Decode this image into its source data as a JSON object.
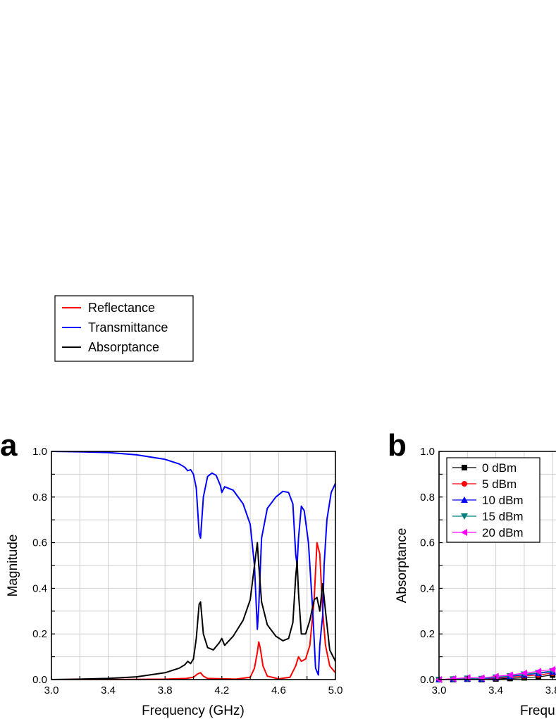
{
  "chart_data": [
    {
      "panel": "a",
      "type": "line",
      "xlabel": "Frequency (GHz)",
      "ylabel": "Magnitude",
      "xlim": [
        3.0,
        5.0
      ],
      "ylim": [
        0.0,
        1.0
      ],
      "xticks": [
        "3.0",
        "3.4",
        "3.8",
        "4.2",
        "4.6",
        "5.0"
      ],
      "yticks": [
        "0.0",
        "0.2",
        "0.4",
        "0.6",
        "0.8",
        "1.0"
      ],
      "grid": true,
      "legend_position": "center-left",
      "series": [
        {
          "name": "Reflectance",
          "color": "#ff0000",
          "points": [
            [
              3.0,
              0.0
            ],
            [
              3.4,
              0.0
            ],
            [
              3.8,
              0.002
            ],
            [
              3.95,
              0.005
            ],
            [
              4.0,
              0.01
            ],
            [
              4.03,
              0.025
            ],
            [
              4.05,
              0.03
            ],
            [
              4.07,
              0.015
            ],
            [
              4.1,
              0.005
            ],
            [
              4.3,
              0.002
            ],
            [
              4.4,
              0.01
            ],
            [
              4.43,
              0.05
            ],
            [
              4.45,
              0.12
            ],
            [
              4.46,
              0.165
            ],
            [
              4.47,
              0.14
            ],
            [
              4.49,
              0.06
            ],
            [
              4.52,
              0.015
            ],
            [
              4.6,
              0.003
            ],
            [
              4.68,
              0.01
            ],
            [
              4.72,
              0.06
            ],
            [
              4.74,
              0.1
            ],
            [
              4.76,
              0.08
            ],
            [
              4.79,
              0.09
            ],
            [
              4.82,
              0.15
            ],
            [
              4.85,
              0.35
            ],
            [
              4.87,
              0.6
            ],
            [
              4.89,
              0.55
            ],
            [
              4.91,
              0.3
            ],
            [
              4.93,
              0.15
            ],
            [
              4.96,
              0.06
            ],
            [
              5.0,
              0.03
            ]
          ]
        },
        {
          "name": "Transmittance",
          "color": "#0000ff",
          "points": [
            [
              3.0,
              1.0
            ],
            [
              3.2,
              0.998
            ],
            [
              3.4,
              0.995
            ],
            [
              3.6,
              0.985
            ],
            [
              3.8,
              0.965
            ],
            [
              3.9,
              0.945
            ],
            [
              3.94,
              0.93
            ],
            [
              3.96,
              0.915
            ],
            [
              3.98,
              0.92
            ],
            [
              4.0,
              0.9
            ],
            [
              4.02,
              0.84
            ],
            [
              4.04,
              0.64
            ],
            [
              4.05,
              0.62
            ],
            [
              4.07,
              0.8
            ],
            [
              4.1,
              0.89
            ],
            [
              4.13,
              0.905
            ],
            [
              4.16,
              0.895
            ],
            [
              4.19,
              0.85
            ],
            [
              4.2,
              0.82
            ],
            [
              4.22,
              0.845
            ],
            [
              4.28,
              0.83
            ],
            [
              4.35,
              0.77
            ],
            [
              4.4,
              0.68
            ],
            [
              4.43,
              0.5
            ],
            [
              4.45,
              0.22
            ],
            [
              4.46,
              0.32
            ],
            [
              4.48,
              0.62
            ],
            [
              4.52,
              0.75
            ],
            [
              4.58,
              0.8
            ],
            [
              4.63,
              0.825
            ],
            [
              4.67,
              0.82
            ],
            [
              4.7,
              0.77
            ],
            [
              4.72,
              0.55
            ],
            [
              4.73,
              0.5
            ],
            [
              4.74,
              0.62
            ],
            [
              4.76,
              0.76
            ],
            [
              4.78,
              0.74
            ],
            [
              4.81,
              0.6
            ],
            [
              4.84,
              0.3
            ],
            [
              4.86,
              0.05
            ],
            [
              4.88,
              0.02
            ],
            [
              4.89,
              0.15
            ],
            [
              4.9,
              0.22
            ],
            [
              4.91,
              0.28
            ],
            [
              4.92,
              0.5
            ],
            [
              4.94,
              0.7
            ],
            [
              4.97,
              0.82
            ],
            [
              5.0,
              0.86
            ]
          ]
        },
        {
          "name": "Absorptance",
          "color": "#000000",
          "points": [
            [
              3.0,
              0.0
            ],
            [
              3.2,
              0.002
            ],
            [
              3.4,
              0.005
            ],
            [
              3.6,
              0.012
            ],
            [
              3.8,
              0.03
            ],
            [
              3.9,
              0.05
            ],
            [
              3.94,
              0.065
            ],
            [
              3.96,
              0.08
            ],
            [
              3.98,
              0.07
            ],
            [
              4.0,
              0.09
            ],
            [
              4.02,
              0.18
            ],
            [
              4.04,
              0.33
            ],
            [
              4.05,
              0.34
            ],
            [
              4.07,
              0.2
            ],
            [
              4.1,
              0.14
            ],
            [
              4.14,
              0.13
            ],
            [
              4.18,
              0.16
            ],
            [
              4.2,
              0.18
            ],
            [
              4.22,
              0.15
            ],
            [
              4.28,
              0.19
            ],
            [
              4.35,
              0.26
            ],
            [
              4.4,
              0.35
            ],
            [
              4.43,
              0.5
            ],
            [
              4.45,
              0.6
            ],
            [
              4.46,
              0.5
            ],
            [
              4.48,
              0.34
            ],
            [
              4.52,
              0.24
            ],
            [
              4.58,
              0.19
            ],
            [
              4.63,
              0.17
            ],
            [
              4.67,
              0.18
            ],
            [
              4.7,
              0.25
            ],
            [
              4.72,
              0.45
            ],
            [
              4.73,
              0.52
            ],
            [
              4.74,
              0.38
            ],
            [
              4.76,
              0.2
            ],
            [
              4.79,
              0.2
            ],
            [
              4.82,
              0.26
            ],
            [
              4.85,
              0.35
            ],
            [
              4.87,
              0.36
            ],
            [
              4.89,
              0.3
            ],
            [
              4.91,
              0.42
            ],
            [
              4.93,
              0.3
            ],
            [
              4.96,
              0.13
            ],
            [
              5.0,
              0.08
            ]
          ]
        }
      ]
    },
    {
      "panel": "b",
      "type": "line",
      "xlabel": "Frequ",
      "ylabel": "Absorptance",
      "xlim": [
        3.0,
        5.0
      ],
      "ylim": [
        0.0,
        1.0
      ],
      "xticks": [
        "3.0",
        "3.4",
        "3.8"
      ],
      "yticks": [
        "0.0",
        "0.2",
        "0.4",
        "0.6",
        "0.8",
        "1.0"
      ],
      "grid": true,
      "legend_position": "top-left",
      "series": [
        {
          "name": "0 dBm",
          "color": "#000000",
          "marker": "square",
          "points": [
            [
              3.0,
              0.0
            ],
            [
              3.1,
              0.0
            ],
            [
              3.2,
              0.002
            ],
            [
              3.3,
              0.0
            ],
            [
              3.4,
              0.003
            ],
            [
              3.5,
              0.005
            ],
            [
              3.6,
              0.008
            ],
            [
              3.7,
              0.012
            ],
            [
              3.8,
              0.02
            ]
          ]
        },
        {
          "name": "5 dBm",
          "color": "#ff0000",
          "marker": "circle",
          "points": [
            [
              3.0,
              0.0
            ],
            [
              3.1,
              0.001
            ],
            [
              3.2,
              0.003
            ],
            [
              3.3,
              0.002
            ],
            [
              3.4,
              0.006
            ],
            [
              3.5,
              0.01
            ],
            [
              3.6,
              0.015
            ],
            [
              3.7,
              0.02
            ],
            [
              3.8,
              0.028
            ]
          ]
        },
        {
          "name": "10 dBm",
          "color": "#0000ff",
          "marker": "triangle-up",
          "points": [
            [
              3.0,
              0.0
            ],
            [
              3.1,
              0.002
            ],
            [
              3.2,
              0.004
            ],
            [
              3.3,
              0.003
            ],
            [
              3.4,
              0.008
            ],
            [
              3.5,
              0.014
            ],
            [
              3.6,
              0.02
            ],
            [
              3.7,
              0.027
            ],
            [
              3.8,
              0.034
            ]
          ]
        },
        {
          "name": "15 dBm",
          "color": "#008080",
          "marker": "triangle-down",
          "points": [
            [
              3.0,
              0.0
            ],
            [
              3.1,
              0.002
            ],
            [
              3.2,
              0.005
            ],
            [
              3.3,
              0.004
            ],
            [
              3.4,
              0.01
            ],
            [
              3.5,
              0.016
            ],
            [
              3.6,
              0.023
            ],
            [
              3.7,
              0.03
            ],
            [
              3.8,
              0.038
            ]
          ]
        },
        {
          "name": "20 dBm",
          "color": "#ff00ff",
          "marker": "triangle-left",
          "points": [
            [
              3.0,
              0.0
            ],
            [
              3.1,
              0.004
            ],
            [
              3.2,
              0.008
            ],
            [
              3.3,
              0.007
            ],
            [
              3.4,
              0.014
            ],
            [
              3.5,
              0.02
            ],
            [
              3.6,
              0.028
            ],
            [
              3.7,
              0.036
            ],
            [
              3.8,
              0.044
            ]
          ]
        }
      ]
    }
  ]
}
